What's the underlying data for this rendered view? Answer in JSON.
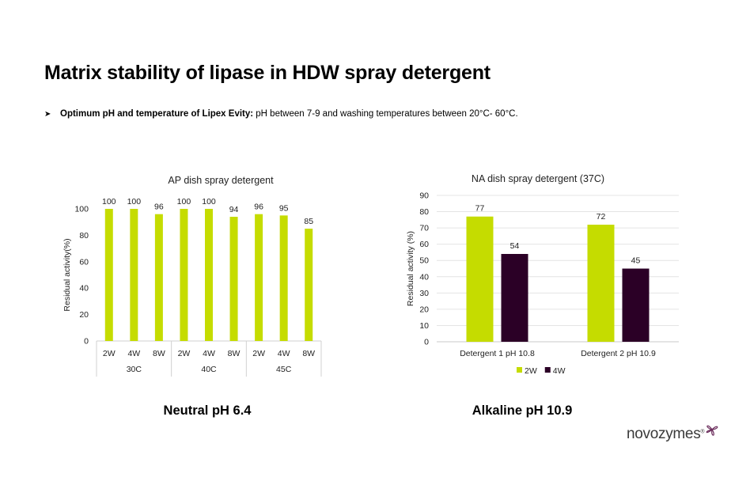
{
  "slide": {
    "title": "Matrix stability of lipase in HDW spray detergent",
    "bullet_bold": "Optimum pH and temperature of Lipex Evity:",
    "bullet_text": " pH between 7-9 and washing temperatures between 20°C- 60°C.",
    "caption_left": "Neutral pH 6.4",
    "caption_right": "Alkaline pH 10.9",
    "logo_text": "novozymes",
    "logo_mark": "®",
    "bullet_icon": "arrow-bullet-icon",
    "logo_icon": "novozymes-flower-icon"
  },
  "chart_data": [
    {
      "type": "bar",
      "title": "AP dish spray detergent",
      "ylabel": "Residual activity(%)",
      "xlabel": "",
      "ylim": [
        0,
        100
      ],
      "yticks": [
        0,
        20,
        40,
        60,
        80,
        100
      ],
      "grid": false,
      "legend": "none",
      "color": "#c5dc00",
      "categories": [
        "2W",
        "4W",
        "8W",
        "2W",
        "4W",
        "8W",
        "2W",
        "4W",
        "8W"
      ],
      "groups": [
        {
          "label": "30C",
          "span": 3
        },
        {
          "label": "40C",
          "span": 3
        },
        {
          "label": "45C",
          "span": 3
        }
      ],
      "values": [
        100,
        100,
        96,
        100,
        100,
        94,
        96,
        95,
        85
      ]
    },
    {
      "type": "bar",
      "title": "NA dish spray detergent (37C)",
      "ylabel": "Residual activity (%)",
      "xlabel": "",
      "ylim": [
        0,
        90
      ],
      "yticks": [
        0,
        10,
        20,
        30,
        40,
        50,
        60,
        70,
        80,
        90
      ],
      "grid": true,
      "legend": "bottom",
      "categories": [
        "Detergent 1 pH 10.8",
        "Detergent 2 pH 10.9"
      ],
      "series": [
        {
          "name": "2W",
          "values": [
            77,
            72
          ],
          "color": "#c5dc00"
        },
        {
          "name": "4W",
          "values": [
            54,
            45
          ],
          "color": "#2b0026"
        }
      ]
    }
  ]
}
